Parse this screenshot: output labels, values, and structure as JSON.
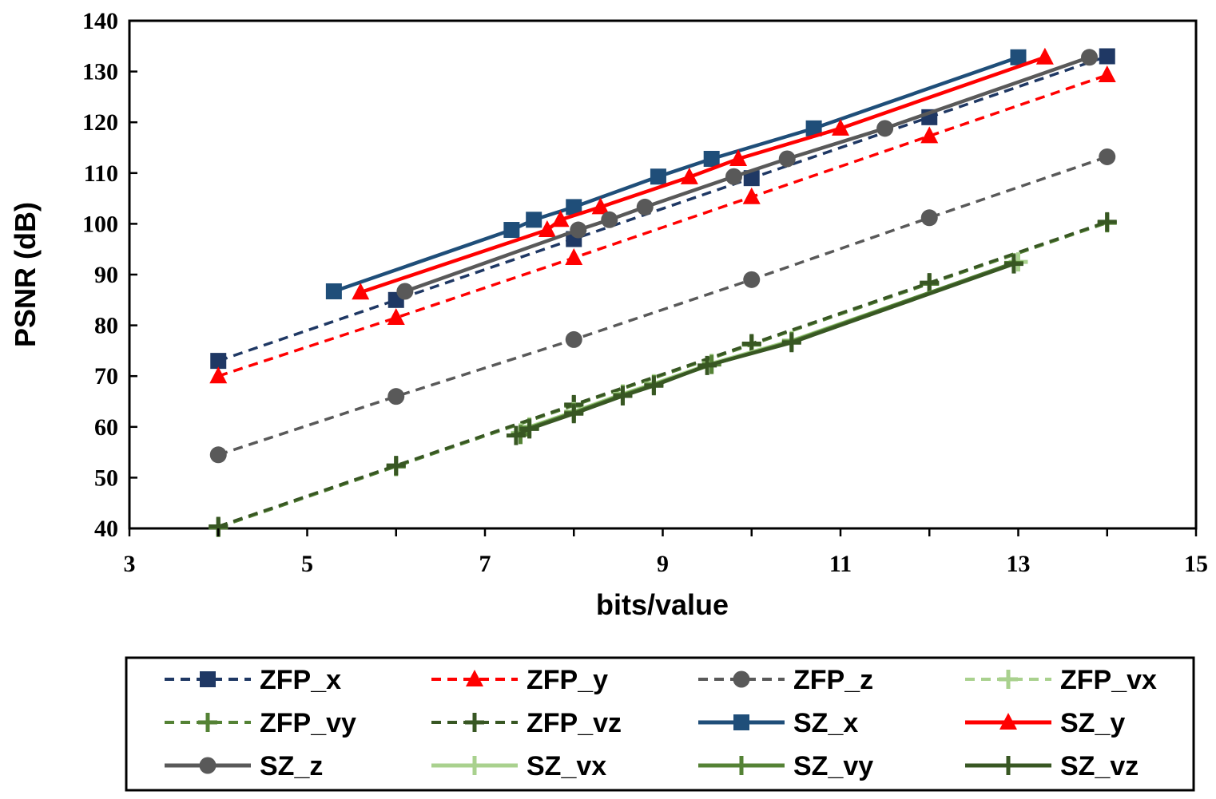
{
  "chart_data": {
    "type": "line",
    "title": "",
    "xlabel": "bits/value",
    "ylabel": "PSNR (dB)",
    "xlim": [
      3,
      15
    ],
    "ylim": [
      40,
      140
    ],
    "xticks": [
      3,
      5,
      7,
      9,
      11,
      13,
      15
    ],
    "yticks": [
      40,
      50,
      60,
      70,
      80,
      90,
      100,
      110,
      120,
      130,
      140
    ],
    "grid": false,
    "legend_position": "bottom",
    "series": [
      {
        "name": "ZFP_x",
        "color": "#1f3864",
        "dash": true,
        "marker": "square",
        "x": [
          4,
          6,
          8,
          10,
          12,
          14
        ],
        "y": [
          73,
          85,
          97,
          109,
          121,
          133
        ]
      },
      {
        "name": "ZFP_y",
        "color": "#ff0000",
        "dash": true,
        "marker": "triangle",
        "x": [
          4,
          6,
          8,
          10,
          12,
          14
        ],
        "y": [
          70,
          81.5,
          93.3,
          105.3,
          117.3,
          129.3
        ]
      },
      {
        "name": "ZFP_z",
        "color": "#595959",
        "dash": true,
        "marker": "circle",
        "x": [
          4,
          6,
          8,
          10,
          12,
          14
        ],
        "y": [
          54.5,
          66,
          77.2,
          89,
          101.2,
          113.2
        ]
      },
      {
        "name": "ZFP_vx",
        "color": "#a9d18e",
        "dash": true,
        "marker": "plus",
        "x": [
          4,
          6,
          8,
          10,
          12,
          14
        ],
        "y": [
          40.3,
          52.3,
          64.3,
          76.3,
          88.3,
          100.3
        ]
      },
      {
        "name": "ZFP_vy",
        "color": "#548235",
        "dash": true,
        "marker": "plus",
        "x": [
          4,
          6,
          8,
          10,
          12,
          14
        ],
        "y": [
          40.2,
          52.2,
          64.2,
          76.2,
          88.2,
          100.2
        ]
      },
      {
        "name": "ZFP_vz",
        "color": "#385723",
        "dash": true,
        "marker": "plus",
        "x": [
          4,
          6,
          8,
          10,
          12,
          14
        ],
        "y": [
          40.4,
          52.4,
          64.4,
          76.4,
          88.4,
          100.4
        ]
      },
      {
        "name": "SZ_x",
        "color": "#1f4e79",
        "dash": false,
        "marker": "square",
        "x": [
          5.3,
          7.3,
          7.55,
          8,
          8.95,
          9.55,
          10.7,
          13
        ],
        "y": [
          86.7,
          98.8,
          100.8,
          103.3,
          109.3,
          112.8,
          118.8,
          132.8
        ]
      },
      {
        "name": "SZ_y",
        "color": "#ff0000",
        "dash": false,
        "marker": "triangle",
        "x": [
          5.6,
          7.7,
          7.85,
          8.3,
          9.3,
          9.85,
          11,
          13.3
        ],
        "y": [
          86.5,
          98.8,
          100.8,
          103.3,
          109.2,
          112.8,
          118.8,
          132.8
        ]
      },
      {
        "name": "SZ_z",
        "color": "#595959",
        "dash": false,
        "marker": "circle",
        "x": [
          6.1,
          8.05,
          8.4,
          8.8,
          9.8,
          10.4,
          11.5,
          13.8
        ],
        "y": [
          86.7,
          98.8,
          100.8,
          103.3,
          109.3,
          112.8,
          118.8,
          132.8
        ]
      },
      {
        "name": "SZ_vx",
        "color": "#a9d18e",
        "dash": false,
        "marker": "plus",
        "x": [
          7.4,
          7.5,
          8,
          8.55,
          8.9,
          9.55,
          10.45,
          13
        ],
        "y": [
          58.8,
          60,
          63,
          66.5,
          68.5,
          72.5,
          77,
          92.5
        ]
      },
      {
        "name": "SZ_vy",
        "color": "#548235",
        "dash": false,
        "marker": "plus",
        "x": [
          7.4,
          7.5,
          8,
          8.55,
          8.9,
          9.55,
          10.45,
          12.95
        ],
        "y": [
          58.5,
          59.8,
          62.8,
          66.3,
          68.3,
          72.3,
          76.8,
          92.3
        ]
      },
      {
        "name": "SZ_vz",
        "color": "#385723",
        "dash": false,
        "marker": "plus",
        "x": [
          7.35,
          7.5,
          8,
          8.55,
          8.9,
          9.5,
          10.45,
          12.95
        ],
        "y": [
          58.3,
          59.6,
          62.6,
          66.1,
          68.1,
          72.1,
          76.6,
          92.1
        ]
      }
    ]
  }
}
